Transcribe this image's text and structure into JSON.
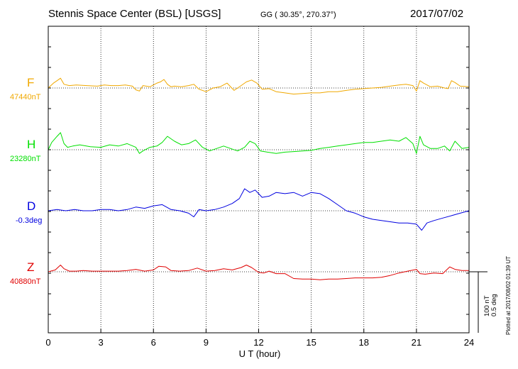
{
  "header": {
    "title": "Stennis Space Center (BSL)  [USGS]",
    "coords": "GG ( 30.35°, 270.37°)",
    "date": "2017/07/02"
  },
  "footer": {
    "plotted": "Plotted at 2017/08/02 01:39 UT",
    "scale_nt": "100 nT",
    "scale_deg": "0.5 deg"
  },
  "components": [
    {
      "name": "F",
      "baseline": "47440nT",
      "color": "#f0a800"
    },
    {
      "name": "H",
      "baseline": "23280nT",
      "color": "#00e000"
    },
    {
      "name": "D",
      "baseline": "-0.3deg",
      "color": "#0000e0"
    },
    {
      "name": "Z",
      "baseline": "40880nT",
      "color": "#e00000"
    }
  ],
  "chart_data": {
    "type": "line",
    "xlabel": "U T (hour)",
    "xlim": [
      0,
      24
    ],
    "xticks": [
      "0",
      "3",
      "6",
      "9",
      "12",
      "15",
      "18",
      "21",
      "24"
    ],
    "grid": true,
    "series": [
      {
        "name": "F",
        "unit": "nT",
        "baseline": 47440,
        "x": [
          0,
          0.3,
          0.5,
          0.7,
          0.9,
          1.2,
          1.6,
          2.2,
          2.8,
          3.2,
          3.6,
          4.0,
          4.4,
          4.8,
          5.0,
          5.2,
          5.4,
          5.8,
          6.2,
          6.4,
          6.6,
          6.8,
          7.0,
          7.2,
          7.6,
          8.0,
          8.3,
          8.6,
          9.0,
          9.4,
          9.8,
          10.2,
          10.6,
          11.0,
          11.3,
          11.6,
          11.9,
          12.2,
          12.6,
          13.0,
          13.5,
          14.0,
          14.5,
          15.0,
          15.5,
          16.0,
          16.5,
          17.0,
          17.5,
          18.0,
          18.5,
          19.0,
          19.5,
          20.0,
          20.4,
          20.8,
          21.0,
          21.2,
          21.4,
          21.8,
          22.2,
          22.6,
          22.8,
          23.0,
          23.2,
          23.5,
          24
        ],
        "y": [
          0,
          8,
          12,
          16,
          6,
          4,
          5,
          4,
          3,
          5,
          4,
          4,
          5,
          3,
          -3,
          -5,
          4,
          2,
          8,
          10,
          14,
          6,
          2,
          3,
          2,
          4,
          6,
          -2,
          -6,
          0,
          2,
          8,
          -4,
          4,
          10,
          13,
          8,
          -2,
          -1,
          -6,
          -8,
          -10,
          -9,
          -8,
          -8,
          -6,
          -6,
          -4,
          -2,
          -1,
          0,
          1,
          3,
          5,
          6,
          4,
          -5,
          12,
          8,
          2,
          3,
          0,
          -1,
          12,
          9,
          3,
          2
        ]
      },
      {
        "name": "H",
        "unit": "nT",
        "baseline": 23280,
        "x": [
          0,
          0.2,
          0.5,
          0.7,
          0.9,
          1.1,
          1.4,
          1.8,
          2.4,
          3.0,
          3.5,
          4.0,
          4.5,
          5.0,
          5.2,
          5.4,
          5.8,
          6.2,
          6.5,
          6.8,
          7.2,
          7.6,
          8.0,
          8.4,
          8.8,
          9.2,
          9.6,
          10.0,
          10.4,
          10.8,
          11.2,
          11.5,
          11.8,
          12.1,
          12.5,
          13.0,
          13.5,
          14.0,
          14.5,
          15.0,
          15.5,
          16.0,
          16.5,
          17.0,
          17.5,
          18.0,
          18.5,
          19.0,
          19.5,
          20.0,
          20.4,
          20.8,
          21.0,
          21.2,
          21.4,
          21.8,
          22.2,
          22.6,
          22.9,
          23.2,
          23.6,
          24
        ],
        "y": [
          0,
          12,
          22,
          28,
          10,
          4,
          6,
          8,
          5,
          4,
          8,
          6,
          10,
          4,
          -6,
          -2,
          4,
          6,
          12,
          22,
          14,
          8,
          10,
          16,
          4,
          -2,
          2,
          6,
          2,
          -2,
          4,
          14,
          10,
          -2,
          -4,
          -6,
          -4,
          -3,
          -2,
          -1,
          2,
          4,
          6,
          8,
          10,
          12,
          12,
          14,
          16,
          14,
          20,
          10,
          -6,
          22,
          8,
          2,
          2,
          6,
          -2,
          14,
          2,
          4
        ]
      },
      {
        "name": "D",
        "unit": "deg",
        "baseline": -0.3,
        "x": [
          0,
          0.5,
          1.0,
          1.5,
          2.0,
          2.5,
          3.0,
          3.5,
          4.0,
          4.5,
          5.0,
          5.5,
          6.0,
          6.5,
          7.0,
          7.5,
          8.0,
          8.3,
          8.6,
          9.0,
          9.5,
          10.0,
          10.5,
          10.9,
          11.2,
          11.5,
          11.8,
          12.2,
          12.6,
          13.0,
          13.5,
          14.0,
          14.5,
          15.0,
          15.5,
          16.0,
          16.5,
          17.0,
          17.5,
          18.0,
          18.5,
          19.0,
          19.5,
          20.0,
          20.5,
          21.0,
          21.3,
          21.6,
          22.0,
          22.5,
          23.0,
          23.5,
          24
        ],
        "y": [
          0,
          0.01,
          0.0,
          0.01,
          0.0,
          0.0,
          0.01,
          0.01,
          0.0,
          0.01,
          0.03,
          0.02,
          0.04,
          0.05,
          0.01,
          0.0,
          -0.02,
          -0.05,
          0.01,
          0.0,
          0.01,
          0.03,
          0.06,
          0.1,
          0.18,
          0.15,
          0.17,
          0.11,
          0.12,
          0.15,
          0.14,
          0.15,
          0.12,
          0.15,
          0.14,
          0.1,
          0.05,
          0.0,
          -0.02,
          -0.05,
          -0.07,
          -0.08,
          -0.09,
          -0.1,
          -0.1,
          -0.11,
          -0.16,
          -0.1,
          -0.08,
          -0.06,
          -0.04,
          -0.02,
          0.0
        ]
      },
      {
        "name": "Z",
        "unit": "nT",
        "baseline": 40880,
        "x": [
          0,
          0.4,
          0.7,
          0.9,
          1.2,
          1.6,
          2.0,
          2.5,
          3.0,
          3.5,
          4.0,
          4.5,
          5.0,
          5.5,
          6.0,
          6.3,
          6.7,
          7.0,
          7.5,
          8.0,
          8.5,
          9.0,
          9.5,
          10.0,
          10.5,
          11.0,
          11.3,
          11.6,
          12.0,
          12.3,
          12.6,
          13.0,
          13.5,
          14.0,
          14.5,
          15.0,
          15.5,
          16.0,
          16.5,
          17.0,
          17.5,
          18.0,
          18.5,
          19.0,
          19.5,
          20.0,
          20.5,
          21.0,
          21.2,
          21.5,
          22.0,
          22.5,
          22.9,
          23.2,
          23.6,
          24
        ],
        "y": [
          0,
          3,
          11,
          5,
          1,
          1,
          2,
          1,
          1,
          1,
          1,
          2,
          4,
          1,
          3,
          9,
          8,
          2,
          1,
          2,
          6,
          1,
          2,
          5,
          3,
          7,
          11,
          7,
          -1,
          -2,
          1,
          -3,
          -3,
          -11,
          -12,
          -12,
          -13,
          -12,
          -12,
          -11,
          -10,
          -10,
          -10,
          -9,
          -6,
          -2,
          1,
          4,
          -3,
          -4,
          -2,
          -3,
          8,
          4,
          2,
          2
        ]
      }
    ]
  }
}
